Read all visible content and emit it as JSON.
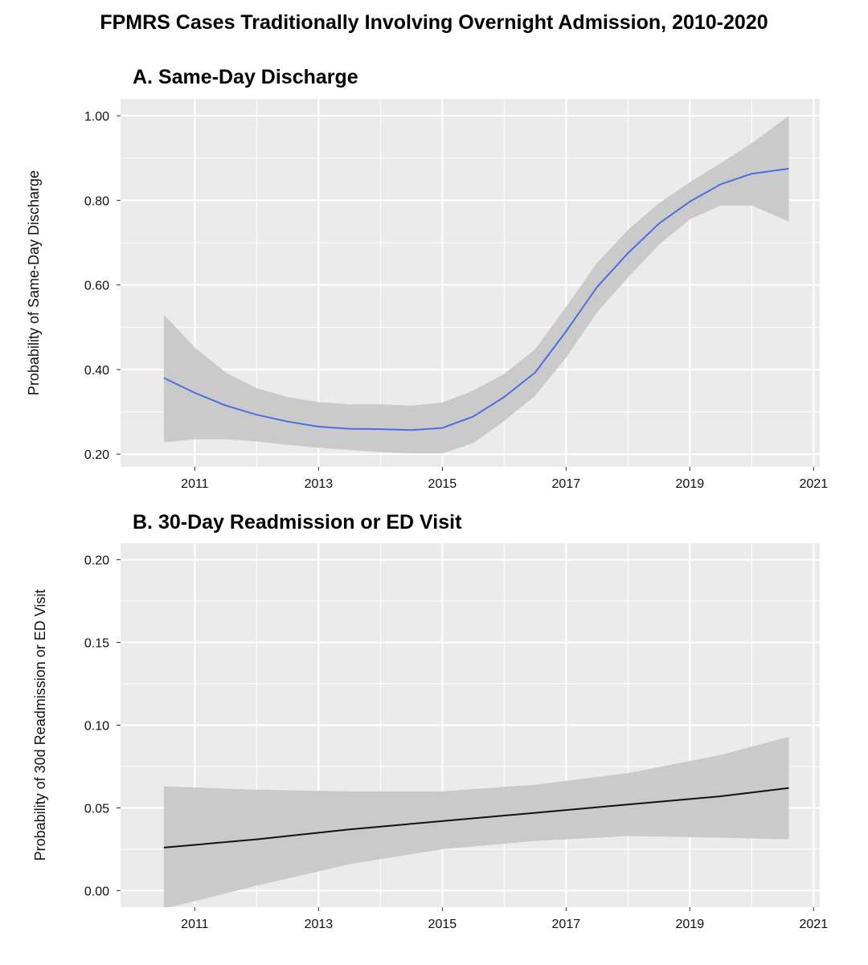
{
  "figure_title": "FPMRS Cases Traditionally Involving Overnight Admission, 2010-2020",
  "colors": {
    "panel_bg": "#ebebeb",
    "grid": "#ffffff",
    "ribbon": "#c8c8c8",
    "line_a": "#4a6fe0",
    "line_b": "#111111"
  },
  "chart_data": [
    {
      "type": "line",
      "title": "A.  Same-Day Discharge",
      "xlabel": "",
      "ylabel": "Probability of Same-Day Discharge",
      "xlim": [
        2009.8,
        2021.1
      ],
      "ylim": [
        0.17,
        1.04
      ],
      "x_ticks": [
        2011,
        2013,
        2015,
        2017,
        2019,
        2021
      ],
      "y_ticks": [
        0.2,
        0.4,
        0.6,
        0.8,
        1.0
      ],
      "y_tick_labels": [
        "0.20",
        "0.40",
        "0.60",
        "0.80",
        "1.00"
      ],
      "grid": true,
      "series": [
        {
          "x": [
            2010.5,
            2011.0,
            2011.5,
            2012.0,
            2012.5,
            2013.0,
            2013.5,
            2014.0,
            2014.5,
            2015.0,
            2015.5,
            2016.0,
            2016.5,
            2017.0,
            2017.5,
            2018.0,
            2018.5,
            2019.0,
            2019.5,
            2020.0,
            2020.6
          ],
          "y": [
            0.38,
            0.345,
            0.315,
            0.293,
            0.277,
            0.265,
            0.26,
            0.259,
            0.257,
            0.262,
            0.289,
            0.335,
            0.393,
            0.49,
            0.595,
            0.675,
            0.745,
            0.797,
            0.838,
            0.863,
            0.875
          ],
          "lower": [
            0.228,
            0.235,
            0.235,
            0.23,
            0.222,
            0.215,
            0.21,
            0.205,
            0.202,
            0.202,
            0.226,
            0.278,
            0.338,
            0.428,
            0.535,
            0.618,
            0.695,
            0.755,
            0.788,
            0.788,
            0.75
          ],
          "upper": [
            0.53,
            0.452,
            0.393,
            0.356,
            0.335,
            0.323,
            0.318,
            0.318,
            0.315,
            0.322,
            0.35,
            0.39,
            0.448,
            0.548,
            0.652,
            0.73,
            0.793,
            0.843,
            0.888,
            0.935,
            1.0
          ]
        }
      ]
    },
    {
      "type": "line",
      "title": "B.  30-Day Readmission  or ED Visit",
      "xlabel": "",
      "ylabel": "Probability of 30d Readmission or ED Visit",
      "xlim": [
        2009.8,
        2021.1
      ],
      "ylim": [
        -0.01,
        0.21
      ],
      "x_ticks": [
        2011,
        2013,
        2015,
        2017,
        2019,
        2021
      ],
      "y_ticks": [
        0.0,
        0.05,
        0.1,
        0.15,
        0.2
      ],
      "y_tick_labels": [
        "0.00",
        "0.05",
        "0.10",
        "0.15",
        "0.20"
      ],
      "grid": true,
      "series": [
        {
          "x": [
            2010.5,
            2012.0,
            2013.5,
            2015.0,
            2016.5,
            2018.0,
            2019.5,
            2020.6
          ],
          "y": [
            0.026,
            0.031,
            0.037,
            0.042,
            0.047,
            0.052,
            0.057,
            0.062
          ],
          "lower": [
            -0.011,
            0.003,
            0.016,
            0.025,
            0.03,
            0.033,
            0.032,
            0.031
          ],
          "upper": [
            0.063,
            0.061,
            0.06,
            0.06,
            0.064,
            0.071,
            0.082,
            0.093
          ]
        }
      ]
    }
  ]
}
